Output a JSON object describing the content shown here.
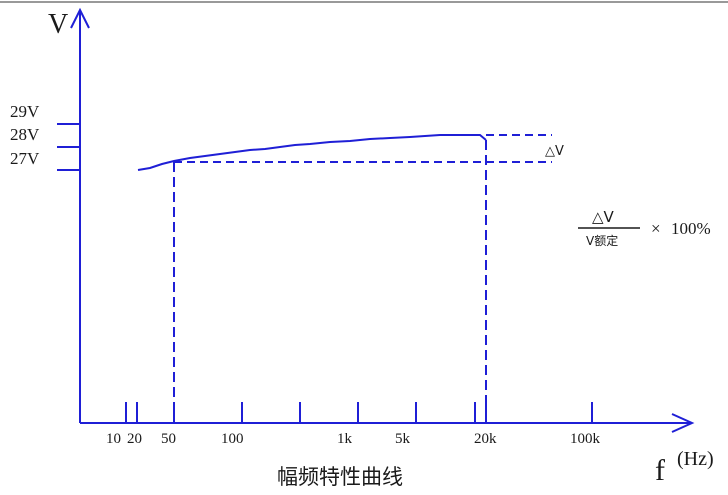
{
  "colors": {
    "line": "#1f1fd6",
    "text": "#1a1a1a",
    "background": "#ffffff"
  },
  "axes": {
    "y_label": "V",
    "x_label": "f",
    "x_unit": "(Hz)",
    "y_ticks": [
      "29V",
      "28V",
      "27V"
    ],
    "x_ticks": [
      "10",
      "20",
      "50",
      "100",
      "1k",
      "5k",
      "20k",
      "100k"
    ]
  },
  "title": "幅频特性曲线",
  "annotations": {
    "delta": "△V",
    "fraction_numerator": "△V",
    "fraction_denominator": "V额定",
    "times": "×",
    "percent": "100%"
  }
}
